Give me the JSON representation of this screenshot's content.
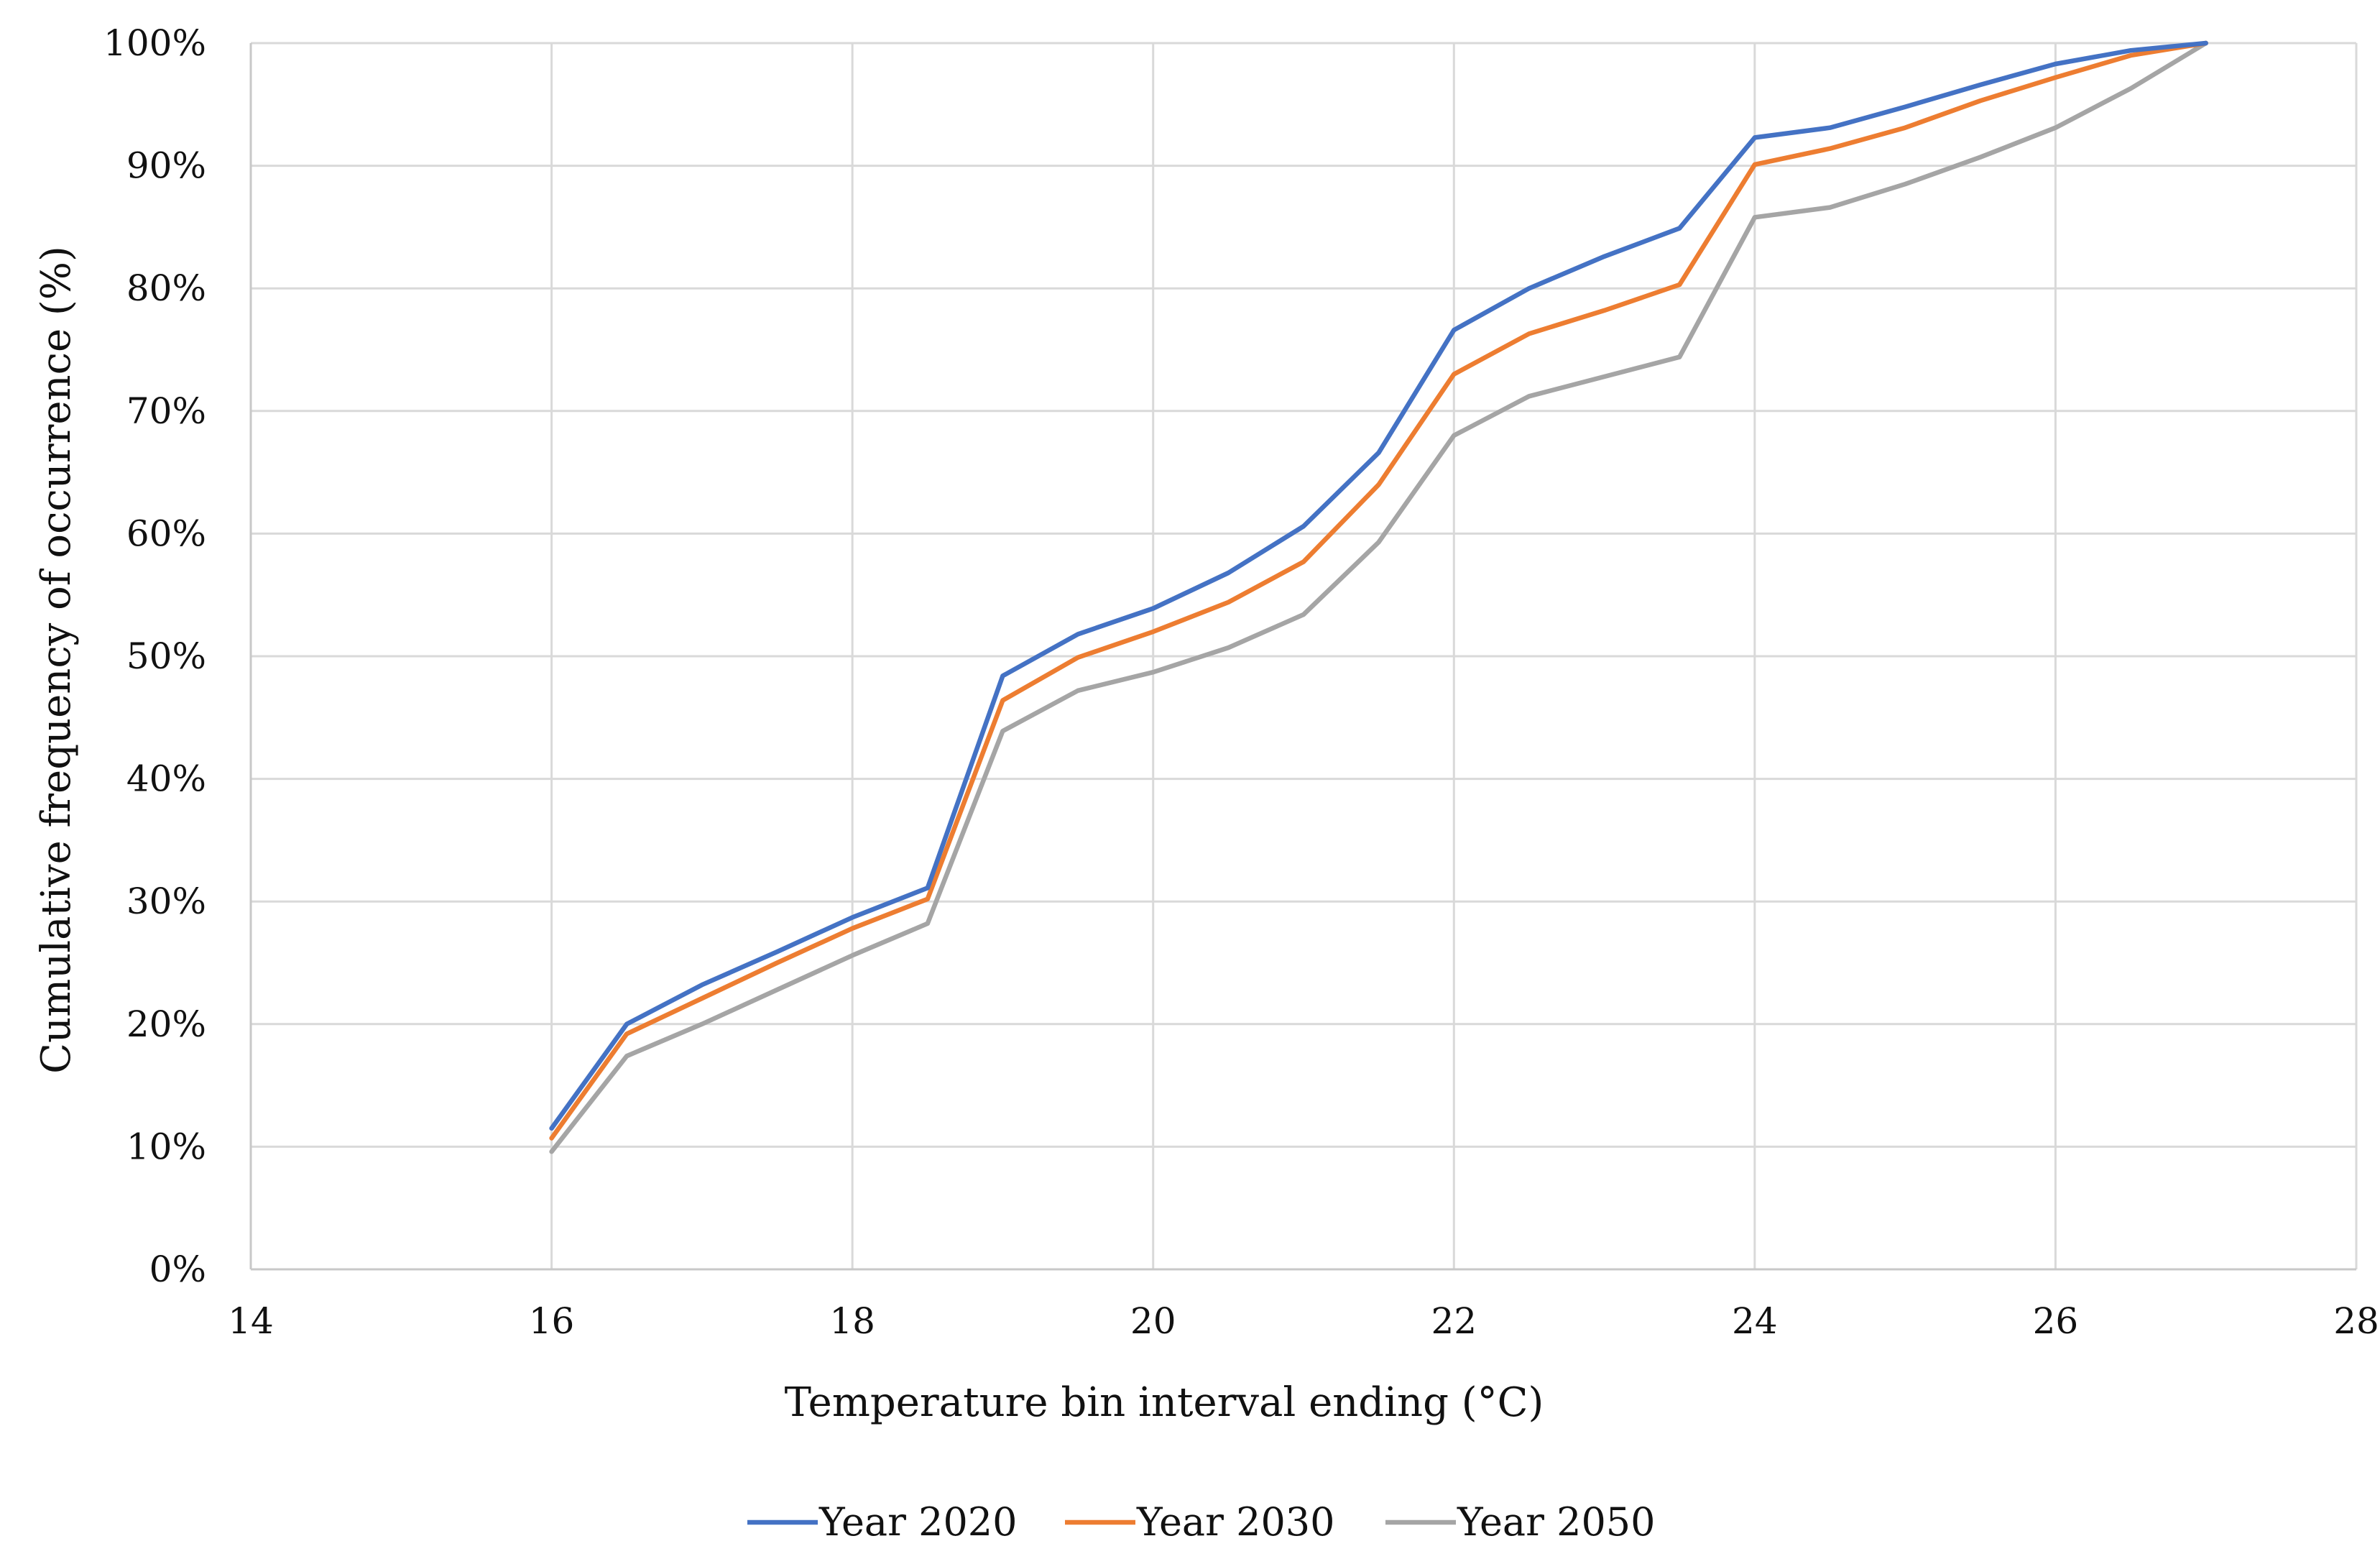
{
  "chart_data": {
    "type": "line",
    "title": "",
    "xlabel": "Temperature bin interval ending (°C)",
    "ylabel": "Cumulative frequency of occurrence (%)",
    "xlim": [
      14,
      28
    ],
    "ylim": [
      0,
      100
    ],
    "xticks": [
      14,
      16,
      18,
      20,
      22,
      24,
      26,
      28
    ],
    "yticks": [
      0,
      10,
      20,
      30,
      40,
      50,
      60,
      70,
      80,
      90,
      100
    ],
    "ytick_labels": [
      "0%",
      "10%",
      "20%",
      "30%",
      "40%",
      "50%",
      "60%",
      "70%",
      "80%",
      "90%",
      "100%"
    ],
    "xtick_labels": [
      "14",
      "16",
      "18",
      "20",
      "22",
      "24",
      "26",
      "28"
    ],
    "grid": true,
    "legend_position": "bottom",
    "x": [
      16,
      16.5,
      17,
      17.5,
      18,
      18.5,
      19,
      19.5,
      20,
      20.5,
      21,
      21.5,
      22,
      22.5,
      23,
      23.5,
      24,
      24.5,
      25,
      25.5,
      26,
      26.5,
      27
    ],
    "series": [
      {
        "name": "Year 2020",
        "color": "#4472C4",
        "values": [
          11.5,
          20.0,
          23.2,
          25.9,
          28.7,
          31.1,
          48.4,
          51.8,
          53.9,
          56.8,
          60.6,
          66.6,
          76.6,
          80.0,
          82.6,
          84.9,
          92.3,
          93.1,
          94.8,
          96.6,
          98.3,
          99.4,
          100.0
        ]
      },
      {
        "name": "Year 2030",
        "color": "#ED7D31",
        "values": [
          10.7,
          19.2,
          22.1,
          25.0,
          27.8,
          30.2,
          46.4,
          49.9,
          52.0,
          54.4,
          57.7,
          64.0,
          73.0,
          76.3,
          78.2,
          80.3,
          90.1,
          91.4,
          93.1,
          95.3,
          97.2,
          99.0,
          100.0
        ]
      },
      {
        "name": "Year 2050",
        "color": "#A5A5A5",
        "values": [
          9.6,
          17.4,
          20.0,
          22.8,
          25.6,
          28.2,
          43.9,
          47.2,
          48.7,
          50.7,
          53.4,
          59.3,
          68.0,
          71.2,
          72.8,
          74.4,
          85.8,
          86.6,
          88.5,
          90.7,
          93.1,
          96.3,
          100.0
        ]
      }
    ]
  }
}
